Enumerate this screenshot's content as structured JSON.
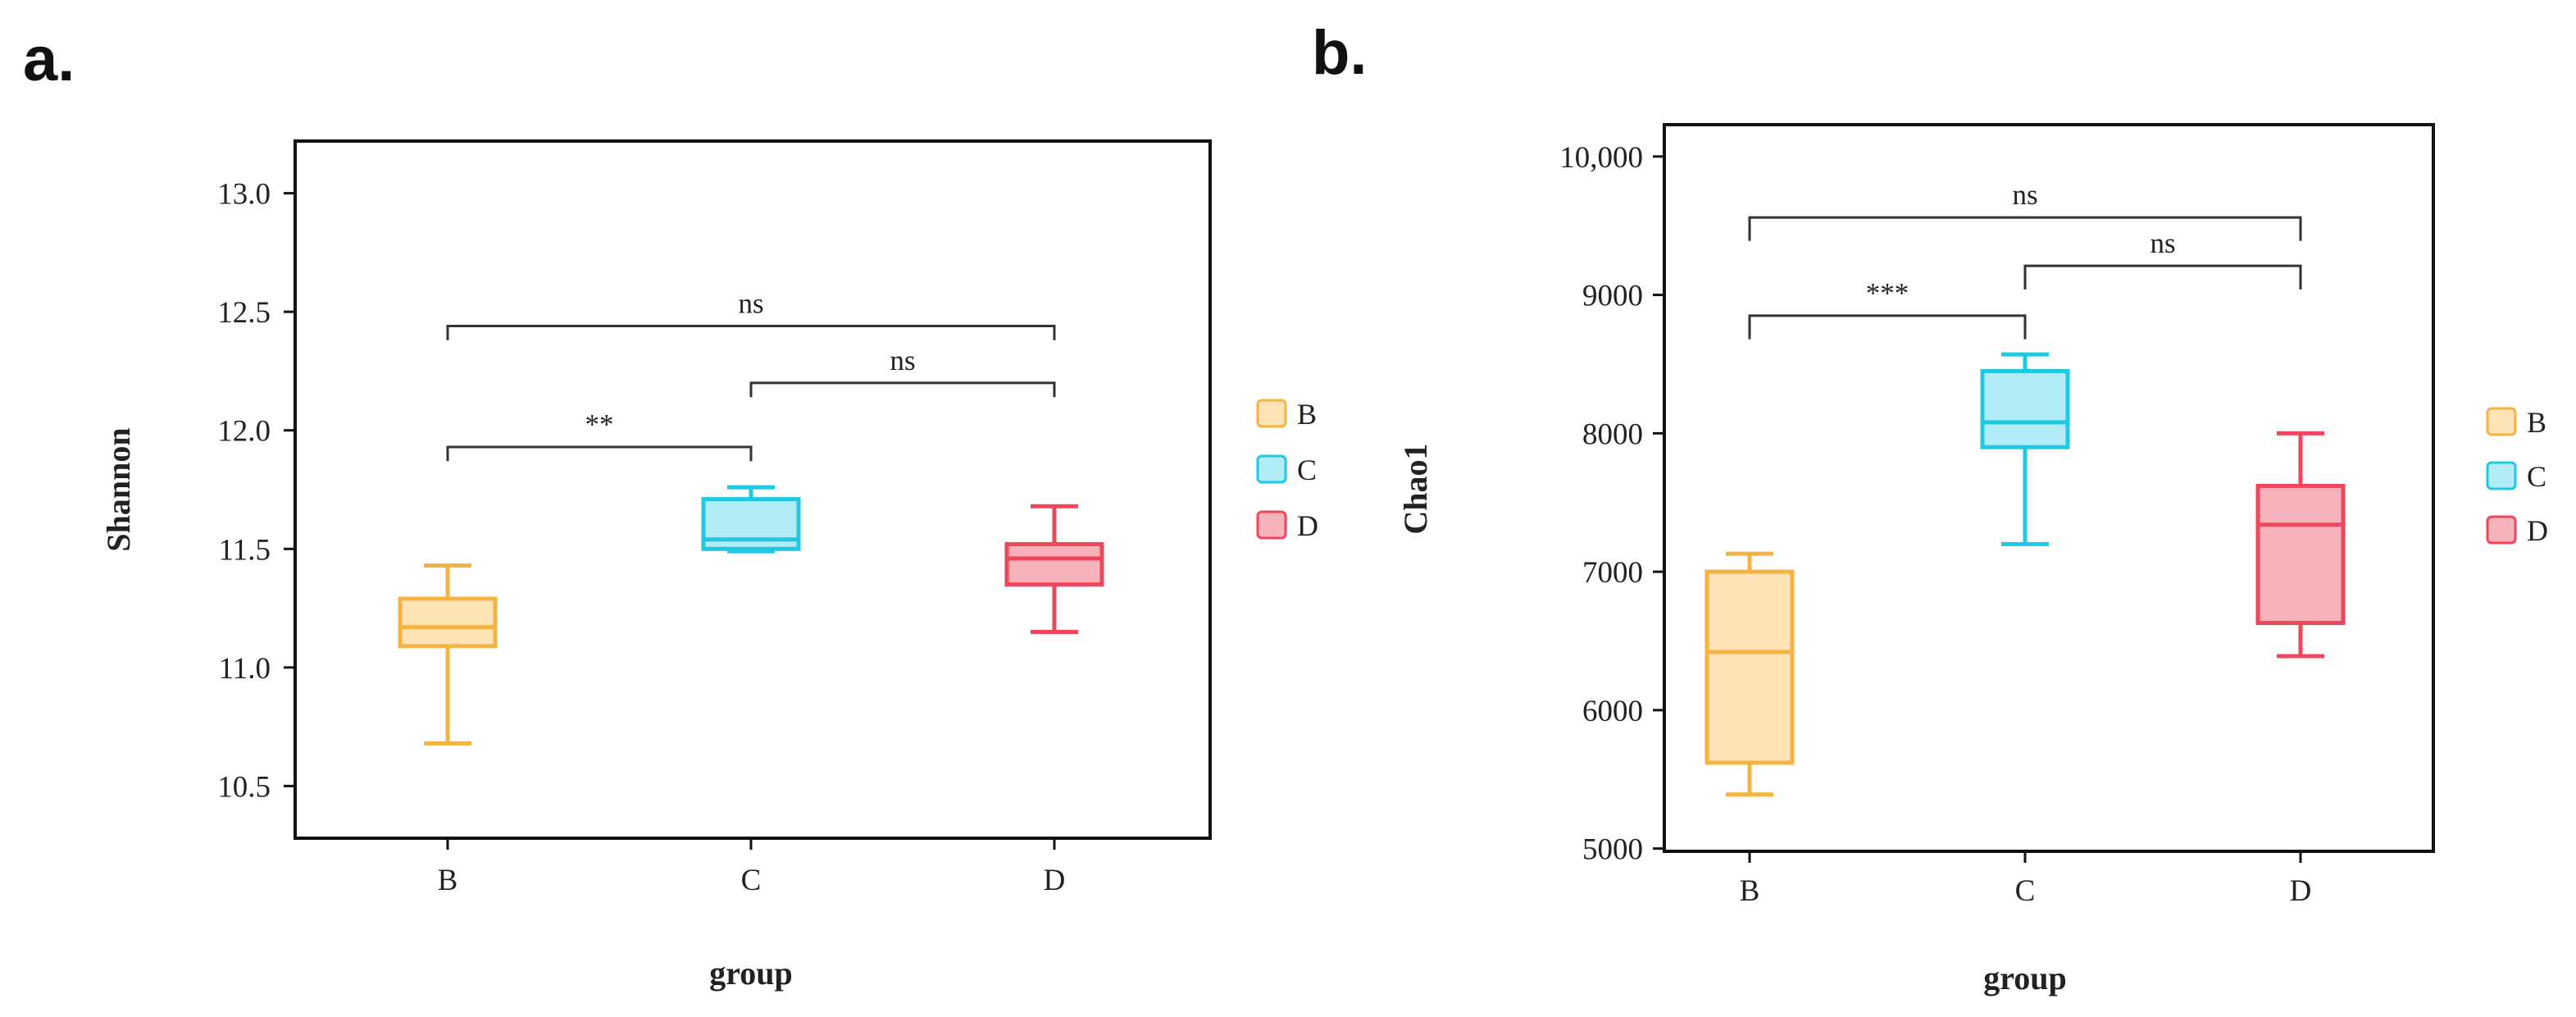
{
  "chart_data": [
    {
      "panel_label": "a.",
      "type": "box",
      "title": "",
      "xlabel": "group",
      "ylabel": "Shannon",
      "categories": [
        "B",
        "C",
        "D"
      ],
      "ylim": [
        10.28,
        13.22
      ],
      "yticks": [
        {
          "value": 10.5,
          "label": "10.5"
        },
        {
          "value": 11.0,
          "label": "11.0"
        },
        {
          "value": 11.5,
          "label": "11.5"
        },
        {
          "value": 12.0,
          "label": "12.0"
        },
        {
          "value": 12.5,
          "label": "12.5"
        },
        {
          "value": 13.0,
          "label": "13.0"
        }
      ],
      "boxes": [
        {
          "group": "B",
          "min": 10.68,
          "q1": 11.09,
          "median": 11.17,
          "q3": 11.29,
          "max": 11.43,
          "color": "#f5b342",
          "fill": "#fde3b5"
        },
        {
          "group": "C",
          "min": 11.49,
          "q1": 11.5,
          "median": 11.54,
          "q3": 11.71,
          "max": 11.76,
          "color": "#1fc8e3",
          "fill": "#b1ecf7"
        },
        {
          "group": "D",
          "min": 11.15,
          "q1": 11.35,
          "median": 11.46,
          "q3": 11.52,
          "max": 11.68,
          "color": "#f0465c",
          "fill": "#f7b2ba"
        }
      ],
      "significance": [
        {
          "from": "B",
          "to": "C",
          "y": 11.93,
          "drop": 0.06,
          "label": "**"
        },
        {
          "from": "C",
          "to": "D",
          "y": 12.2,
          "drop": 0.06,
          "label": "ns"
        },
        {
          "from": "B",
          "to": "D",
          "y": 12.44,
          "drop": 0.06,
          "label": "ns"
        }
      ],
      "legend": [
        {
          "label": "B",
          "color": "#f5b342",
          "fill": "#fde3b5"
        },
        {
          "label": "C",
          "color": "#1fc8e3",
          "fill": "#b1ecf7"
        },
        {
          "label": "D",
          "color": "#f0465c",
          "fill": "#f7b2ba"
        }
      ],
      "legend_position": "right"
    },
    {
      "panel_label": "b.",
      "type": "box",
      "title": "",
      "xlabel": "group",
      "ylabel": "Chao1",
      "categories": [
        "B",
        "C",
        "D"
      ],
      "ylim": [
        4980,
        10230
      ],
      "yticks": [
        {
          "value": 5000,
          "label": "5000"
        },
        {
          "value": 6000,
          "label": "6000"
        },
        {
          "value": 7000,
          "label": "7000"
        },
        {
          "value": 8000,
          "label": "8000"
        },
        {
          "value": 9000,
          "label": "9000"
        },
        {
          "value": 10000,
          "label": "10,000"
        }
      ],
      "boxes": [
        {
          "group": "B",
          "min": 5390,
          "q1": 5620,
          "median": 6420,
          "q3": 7000,
          "max": 7130,
          "color": "#f5b342",
          "fill": "#fde3b5"
        },
        {
          "group": "C",
          "min": 7200,
          "q1": 7900,
          "median": 8080,
          "q3": 8450,
          "max": 8570,
          "color": "#1fc8e3",
          "fill": "#b1ecf7"
        },
        {
          "group": "D",
          "min": 6390,
          "q1": 6630,
          "median": 7340,
          "q3": 7620,
          "max": 8000,
          "color": "#f0465c",
          "fill": "#f7b2ba"
        }
      ],
      "significance": [
        {
          "from": "B",
          "to": "C",
          "y": 8850,
          "drop": 170,
          "label": "***"
        },
        {
          "from": "C",
          "to": "D",
          "y": 9210,
          "drop": 170,
          "label": "ns"
        },
        {
          "from": "B",
          "to": "D",
          "y": 9560,
          "drop": 170,
          "label": "ns"
        }
      ],
      "legend": [
        {
          "label": "B",
          "color": "#f5b342",
          "fill": "#fde3b5"
        },
        {
          "label": "C",
          "color": "#1fc8e3",
          "fill": "#b1ecf7"
        },
        {
          "label": "D",
          "color": "#f0465c",
          "fill": "#f7b2ba"
        }
      ],
      "legend_position": "right"
    }
  ]
}
